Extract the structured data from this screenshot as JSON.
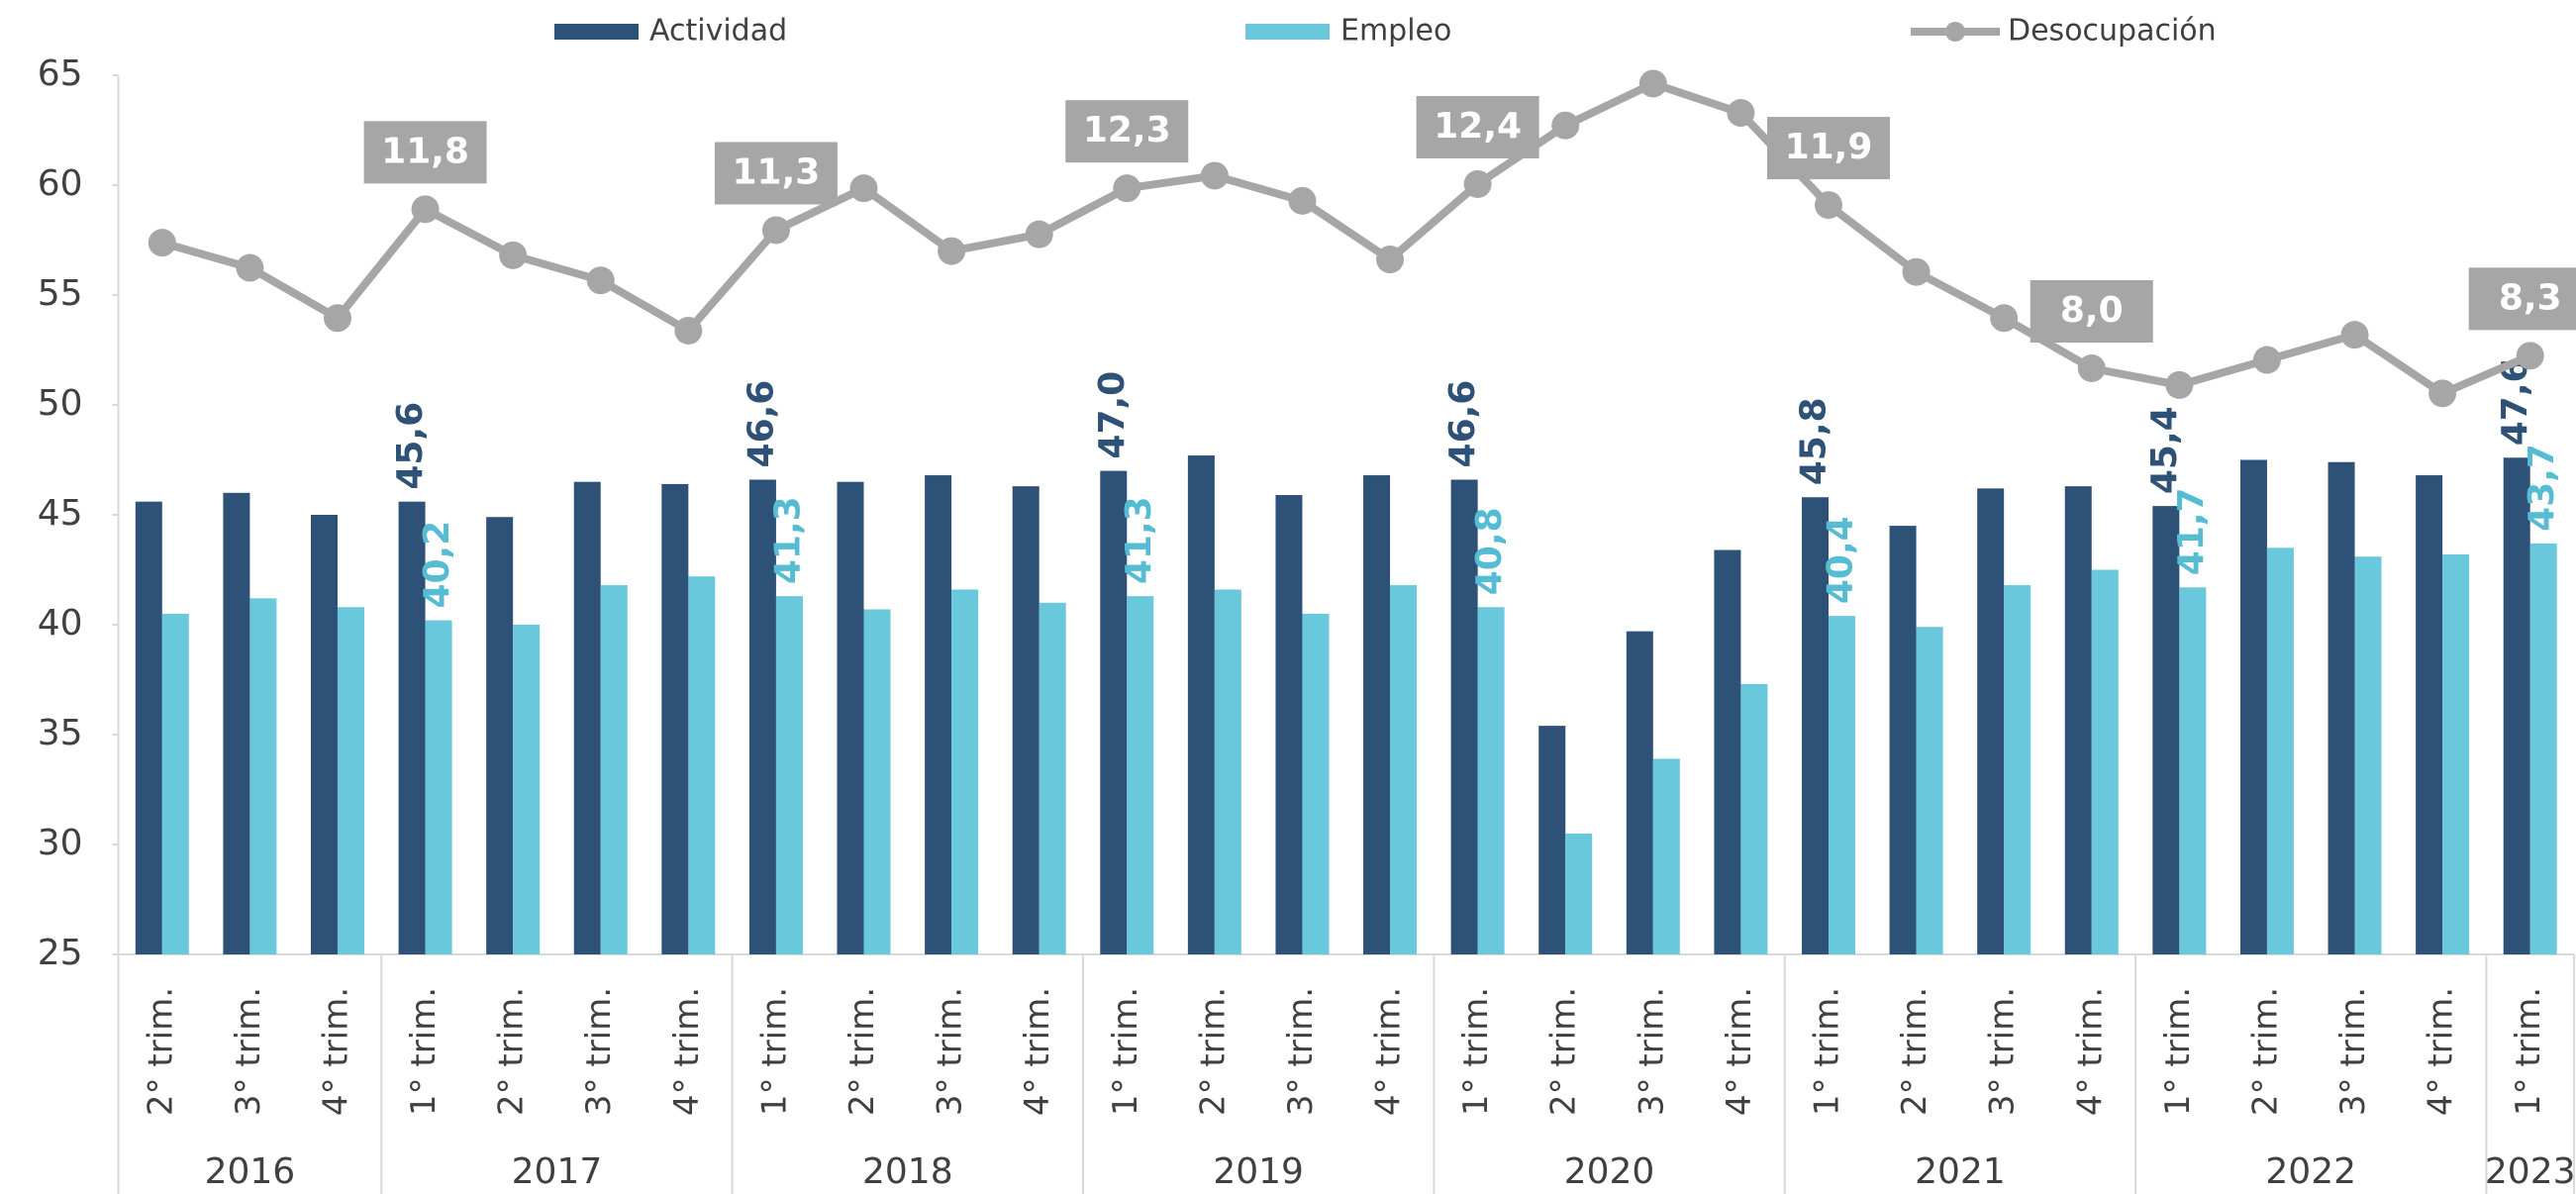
{
  "chart_data": {
    "type": "bar-line",
    "categories": [
      "2° trim.",
      "3° trim.",
      "4° trim.",
      "1° trim.",
      "2° trim.",
      "3° trim.",
      "4° trim.",
      "1° trim.",
      "2° trim.",
      "3° trim.",
      "4° trim.",
      "1° trim.",
      "2° trim.",
      "3° trim.",
      "4° trim.",
      "1° trim.",
      "2° trim.",
      "3° trim.",
      "4° trim.",
      "1° trim.",
      "2° trim.",
      "3° trim.",
      "4° trim.",
      "1° trim.",
      "2° trim.",
      "3° trim.",
      "4° trim.",
      "1° trim."
    ],
    "groups": [
      {
        "label": "2016",
        "size": 3
      },
      {
        "label": "2017",
        "size": 4
      },
      {
        "label": "2018",
        "size": 4
      },
      {
        "label": "2019",
        "size": 4
      },
      {
        "label": "2020",
        "size": 4
      },
      {
        "label": "2021",
        "size": 4
      },
      {
        "label": "2022",
        "size": 4
      },
      {
        "label": "2023",
        "size": 1
      }
    ],
    "series": [
      {
        "name": "Actividad",
        "type": "bar",
        "color": "#2e5178",
        "label_color": "#2e5178",
        "values": [
          45.6,
          46.0,
          45.0,
          45.6,
          44.9,
          46.5,
          46.4,
          46.6,
          46.5,
          46.8,
          46.3,
          47.0,
          47.7,
          45.9,
          46.8,
          46.6,
          35.4,
          39.7,
          43.4,
          45.8,
          44.5,
          46.2,
          46.3,
          45.4,
          47.5,
          47.4,
          46.8,
          47.6
        ],
        "value_labels": [
          null,
          null,
          null,
          "45,6",
          null,
          null,
          null,
          "46,6",
          null,
          null,
          null,
          "47,0",
          null,
          null,
          null,
          "46,6",
          null,
          null,
          null,
          "45,8",
          null,
          null,
          null,
          "45,4",
          null,
          null,
          null,
          "47,6"
        ]
      },
      {
        "name": "Empleo",
        "type": "bar",
        "color": "#6ac8dc",
        "label_color": "#55bcd4",
        "values": [
          40.5,
          41.2,
          40.8,
          40.2,
          40.0,
          41.8,
          42.2,
          41.3,
          40.7,
          41.6,
          41.0,
          41.3,
          41.6,
          40.5,
          41.8,
          40.8,
          30.5,
          33.9,
          37.3,
          40.4,
          39.9,
          41.8,
          42.5,
          41.7,
          43.5,
          43.1,
          43.2,
          43.7
        ],
        "value_labels": [
          null,
          null,
          null,
          "40,2",
          null,
          null,
          null,
          "41,3",
          null,
          null,
          null,
          "41,3",
          null,
          null,
          null,
          "40,8",
          null,
          null,
          null,
          "40,4",
          null,
          null,
          null,
          "41,7",
          null,
          null,
          null,
          "43,7"
        ]
      },
      {
        "name": "Desocupación",
        "type": "line",
        "axis": "y2",
        "color": "#a6a6a6",
        "values": [
          11.0,
          10.4,
          9.2,
          11.8,
          10.7,
          10.1,
          8.9,
          11.3,
          12.3,
          10.8,
          11.2,
          12.3,
          12.6,
          12.0,
          10.6,
          12.4,
          13.8,
          14.8,
          14.1,
          11.9,
          10.3,
          9.2,
          8.0,
          7.6,
          8.2,
          8.8,
          7.4,
          8.3
        ],
        "value_labels": [
          null,
          null,
          null,
          "11,8",
          null,
          null,
          null,
          "11,3",
          null,
          null,
          null,
          "12,3",
          null,
          null,
          null,
          "12,4",
          null,
          null,
          null,
          "11,9",
          null,
          null,
          "8,0",
          null,
          null,
          null,
          null,
          "8,3"
        ]
      }
    ],
    "ylim": [
      25,
      65
    ],
    "yticks": [
      25,
      30,
      35,
      40,
      45,
      50,
      55,
      60,
      65
    ],
    "y2lim": [
      -6,
      15
    ],
    "legend": "top",
    "grid": false
  }
}
